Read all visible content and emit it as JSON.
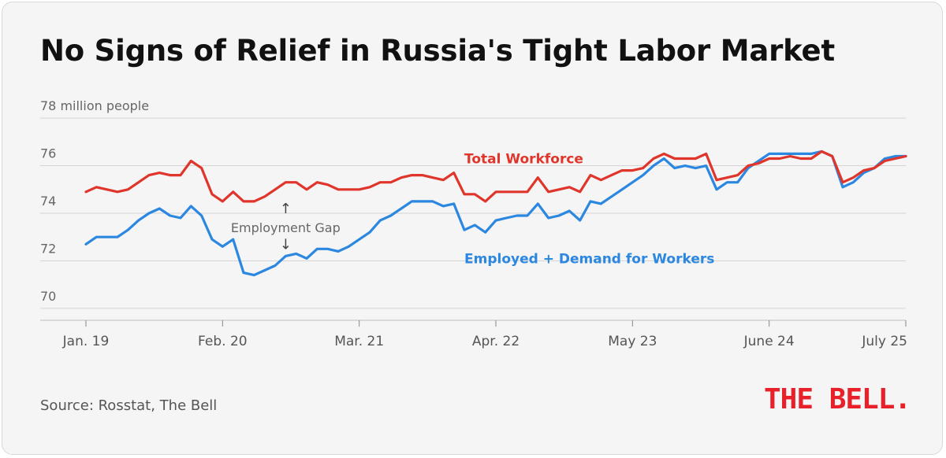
{
  "title": "No Signs of Relief in Russia's Tight Labor Market",
  "source": "Source: Rosstat, The Bell",
  "logo_text": "THE BELL.",
  "colors": {
    "workforce": "#e0352b",
    "employed": "#2c87e0",
    "logo": "#e8202a",
    "background": "#f5f5f5"
  },
  "chart_data": {
    "type": "line",
    "ylabel": "million people",
    "ylim": [
      69.5,
      78.5
    ],
    "yticks": [
      70,
      72,
      74,
      76,
      78
    ],
    "ytick_labels": [
      "70",
      "72",
      "74",
      "76",
      "78 million people"
    ],
    "grid": true,
    "x_tick_labels": [
      "Jan. 19",
      "Feb. 20",
      "Mar. 21",
      "Apr. 22",
      "May 23",
      "June 24",
      "July 25"
    ],
    "x_tick_dates": [
      "2019-01",
      "2020-02",
      "2021-03",
      "2022-04",
      "2023-05",
      "2024-06",
      "2025-07"
    ],
    "x": [
      "2019-01",
      "2019-02",
      "2019-03",
      "2019-04",
      "2019-05",
      "2019-06",
      "2019-07",
      "2019-08",
      "2019-09",
      "2019-10",
      "2019-11",
      "2019-12",
      "2020-01",
      "2020-02",
      "2020-03",
      "2020-04",
      "2020-05",
      "2020-06",
      "2020-07",
      "2020-08",
      "2020-09",
      "2020-10",
      "2020-11",
      "2020-12",
      "2021-01",
      "2021-02",
      "2021-03",
      "2021-04",
      "2021-05",
      "2021-06",
      "2021-07",
      "2021-08",
      "2021-09",
      "2021-10",
      "2021-11",
      "2021-12",
      "2022-01",
      "2022-02",
      "2022-03",
      "2022-04",
      "2022-05",
      "2022-06",
      "2022-07",
      "2022-08",
      "2022-09",
      "2022-10",
      "2022-11",
      "2022-12",
      "2023-01",
      "2023-02",
      "2023-03",
      "2023-04",
      "2023-05",
      "2023-06",
      "2023-07",
      "2023-08",
      "2023-09",
      "2023-10",
      "2023-11",
      "2023-12",
      "2024-01",
      "2024-02",
      "2024-03",
      "2024-04",
      "2024-05",
      "2024-06",
      "2024-07",
      "2024-08",
      "2024-09",
      "2024-10",
      "2024-11",
      "2024-12",
      "2025-01",
      "2025-02",
      "2025-03",
      "2025-04",
      "2025-05",
      "2025-06",
      "2025-07"
    ],
    "series": [
      {
        "name": "Total Workforce",
        "color": "#e0352b",
        "values": [
          74.9,
          75.1,
          75.0,
          74.9,
          75.0,
          75.3,
          75.6,
          75.7,
          75.6,
          75.6,
          76.2,
          75.9,
          74.8,
          74.5,
          74.9,
          74.5,
          74.5,
          74.7,
          75.0,
          75.3,
          75.3,
          75.0,
          75.3,
          75.2,
          75.0,
          75.0,
          75.0,
          75.1,
          75.3,
          75.3,
          75.5,
          75.6,
          75.6,
          75.5,
          75.4,
          75.7,
          74.8,
          74.8,
          74.5,
          74.9,
          74.9,
          74.9,
          74.9,
          75.5,
          74.9,
          75.0,
          75.1,
          74.9,
          75.6,
          75.4,
          75.6,
          75.8,
          75.8,
          75.9,
          76.3,
          76.5,
          76.3,
          76.3,
          76.3,
          76.5,
          75.4,
          75.5,
          75.6,
          76.0,
          76.1,
          76.3,
          76.3,
          76.4,
          76.3,
          76.3,
          76.6,
          76.4,
          75.3,
          75.5,
          75.8,
          75.9,
          76.2,
          76.3,
          76.4
        ]
      },
      {
        "name": "Employed + Demand for Workers",
        "color": "#2c87e0",
        "values": [
          72.7,
          73.0,
          73.0,
          73.0,
          73.3,
          73.7,
          74.0,
          74.2,
          73.9,
          73.8,
          74.3,
          73.9,
          72.9,
          72.6,
          72.9,
          71.5,
          71.4,
          71.6,
          71.8,
          72.2,
          72.3,
          72.1,
          72.5,
          72.5,
          72.4,
          72.6,
          72.9,
          73.2,
          73.7,
          73.9,
          74.2,
          74.5,
          74.5,
          74.5,
          74.3,
          74.4,
          73.3,
          73.5,
          73.2,
          73.7,
          73.8,
          73.9,
          73.9,
          74.4,
          73.8,
          73.9,
          74.1,
          73.7,
          74.5,
          74.4,
          74.7,
          75.0,
          75.3,
          75.6,
          76.0,
          76.3,
          75.9,
          76.0,
          75.9,
          76.0,
          75.0,
          75.3,
          75.3,
          75.9,
          76.2,
          76.5,
          76.5,
          76.5,
          76.5,
          76.5,
          76.6,
          76.4,
          75.1,
          75.3,
          75.7,
          75.9,
          76.3,
          76.4,
          76.4
        ]
      }
    ],
    "annotations": [
      {
        "text": "Employment Gap",
        "x": "2020-08",
        "y": 73.2
      },
      {
        "text": "↑",
        "x": "2020-08",
        "y": 74.0
      },
      {
        "text": "↓",
        "x": "2020-08",
        "y": 72.5
      }
    ]
  }
}
